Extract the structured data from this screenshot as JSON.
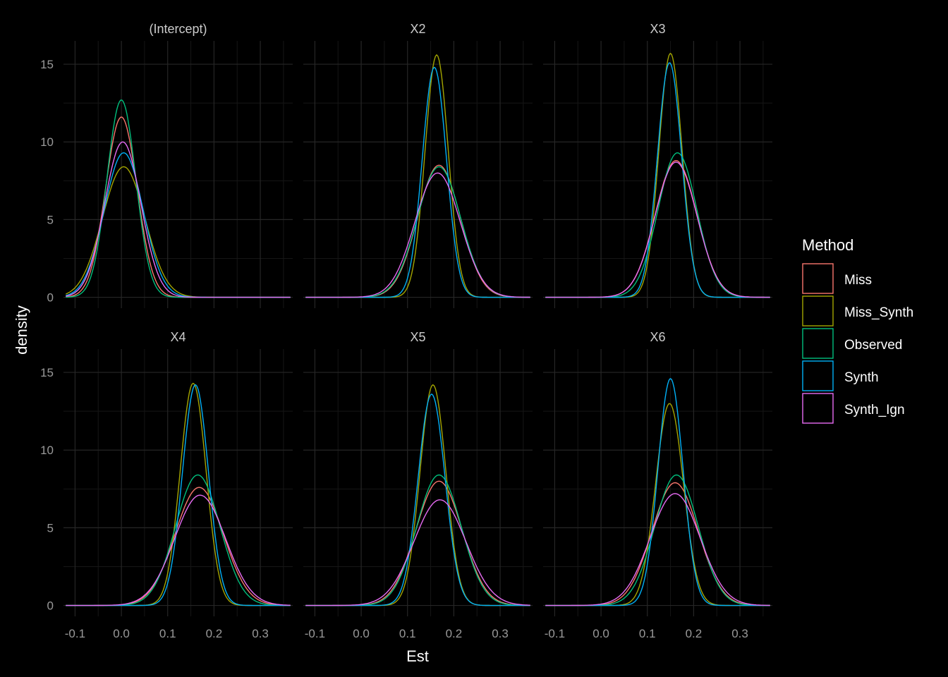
{
  "chart_data": {
    "type": "line",
    "subtype": "density-facets",
    "xlabel": "Est",
    "ylabel": "density",
    "xlim": [
      -0.125,
      0.37
    ],
    "ylim": [
      -0.7,
      16.5
    ],
    "x_ticks": [
      -0.1,
      0.0,
      0.1,
      0.2,
      0.3
    ],
    "x_tick_labels": [
      "-0.1",
      "0.0",
      "0.1",
      "0.2",
      "0.3"
    ],
    "y_ticks": [
      0,
      5,
      10,
      15
    ],
    "y_tick_labels": [
      "0",
      "5",
      "10",
      "15"
    ],
    "legend": {
      "title": "Method",
      "position": "right",
      "entries": [
        {
          "name": "Miss",
          "color": "#F8766D"
        },
        {
          "name": "Miss_Synth",
          "color": "#A3A500"
        },
        {
          "name": "Observed",
          "color": "#00BF7D"
        },
        {
          "name": "Synth",
          "color": "#00B0F6"
        },
        {
          "name": "Synth_Ign",
          "color": "#E76BF3"
        }
      ]
    },
    "facets": [
      {
        "title": "(Intercept)",
        "series": [
          {
            "name": "Miss",
            "mean": 0.0,
            "sd": 0.034,
            "peak": 11.6
          },
          {
            "name": "Miss_Synth",
            "mean": 0.005,
            "sd": 0.046,
            "peak": 8.4
          },
          {
            "name": "Observed",
            "mean": 0.0,
            "sd": 0.031,
            "peak": 12.7
          },
          {
            "name": "Synth",
            "mean": 0.005,
            "sd": 0.042,
            "peak": 9.3
          },
          {
            "name": "Synth_Ign",
            "mean": 0.003,
            "sd": 0.039,
            "peak": 10.0
          }
        ]
      },
      {
        "title": "X2",
        "series": [
          {
            "name": "Miss",
            "mean": 0.168,
            "sd": 0.046,
            "peak": 8.5
          },
          {
            "name": "Miss_Synth",
            "mean": 0.163,
            "sd": 0.025,
            "peak": 15.6
          },
          {
            "name": "Observed",
            "mean": 0.168,
            "sd": 0.047,
            "peak": 8.4
          },
          {
            "name": "Synth",
            "mean": 0.158,
            "sd": 0.026,
            "peak": 14.8
          },
          {
            "name": "Synth_Ign",
            "mean": 0.165,
            "sd": 0.049,
            "peak": 8.0
          }
        ]
      },
      {
        "title": "X3",
        "series": [
          {
            "name": "Miss",
            "mean": 0.162,
            "sd": 0.045,
            "peak": 8.8
          },
          {
            "name": "Miss_Synth",
            "mean": 0.15,
            "sd": 0.025,
            "peak": 15.7
          },
          {
            "name": "Observed",
            "mean": 0.165,
            "sd": 0.042,
            "peak": 9.3
          },
          {
            "name": "Synth",
            "mean": 0.148,
            "sd": 0.026,
            "peak": 15.1
          },
          {
            "name": "Synth_Ign",
            "mean": 0.162,
            "sd": 0.045,
            "peak": 8.7
          }
        ]
      },
      {
        "title": "X4",
        "series": [
          {
            "name": "Miss",
            "mean": 0.168,
            "sd": 0.052,
            "peak": 7.6
          },
          {
            "name": "Miss_Synth",
            "mean": 0.155,
            "sd": 0.028,
            "peak": 14.3
          },
          {
            "name": "Observed",
            "mean": 0.165,
            "sd": 0.048,
            "peak": 8.4
          },
          {
            "name": "Synth",
            "mean": 0.16,
            "sd": 0.028,
            "peak": 14.2
          },
          {
            "name": "Synth_Ign",
            "mean": 0.17,
            "sd": 0.055,
            "peak": 7.1
          }
        ]
      },
      {
        "title": "X5",
        "series": [
          {
            "name": "Miss",
            "mean": 0.168,
            "sd": 0.05,
            "peak": 8.0
          },
          {
            "name": "Miss_Synth",
            "mean": 0.155,
            "sd": 0.028,
            "peak": 14.2
          },
          {
            "name": "Observed",
            "mean": 0.168,
            "sd": 0.048,
            "peak": 8.4
          },
          {
            "name": "Synth",
            "mean": 0.152,
            "sd": 0.029,
            "peak": 13.6
          },
          {
            "name": "Synth_Ign",
            "mean": 0.17,
            "sd": 0.056,
            "peak": 6.8
          }
        ]
      },
      {
        "title": "X6",
        "series": [
          {
            "name": "Miss",
            "mean": 0.16,
            "sd": 0.05,
            "peak": 7.9
          },
          {
            "name": "Miss_Synth",
            "mean": 0.148,
            "sd": 0.03,
            "peak": 13.0
          },
          {
            "name": "Observed",
            "mean": 0.163,
            "sd": 0.047,
            "peak": 8.4
          },
          {
            "name": "Synth",
            "mean": 0.15,
            "sd": 0.027,
            "peak": 14.6
          },
          {
            "name": "Synth_Ign",
            "mean": 0.16,
            "sd": 0.054,
            "peak": 7.2
          }
        ]
      }
    ]
  }
}
